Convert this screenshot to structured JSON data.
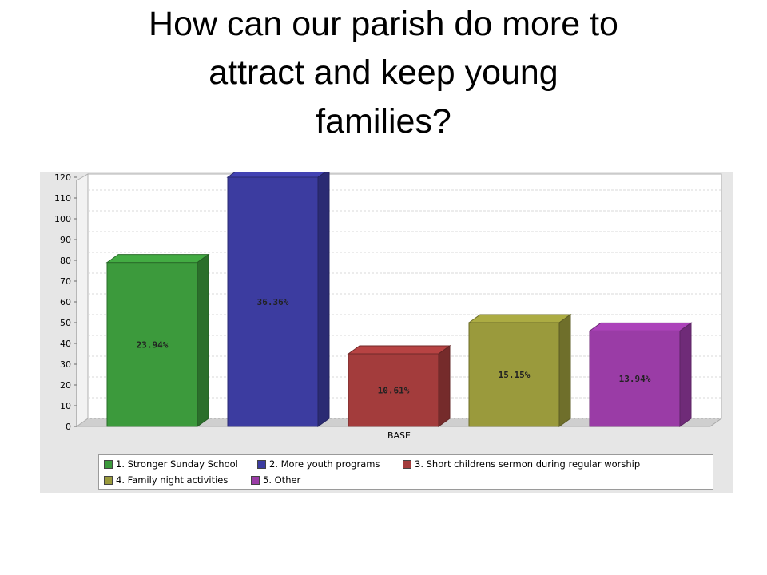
{
  "slide": {
    "title_line1": "How can our parish do more to",
    "title_line2": "attract and keep young",
    "title_line3": "families?"
  },
  "chart_data": {
    "type": "bar",
    "categories": [
      "BASE"
    ],
    "xlabel": "BASE",
    "ylabel": "",
    "ylim": [
      0,
      120
    ],
    "yticks": [
      0,
      10,
      20,
      30,
      40,
      50,
      60,
      70,
      80,
      90,
      100,
      110,
      120
    ],
    "grid": true,
    "legend_position": "bottom",
    "series": [
      {
        "name": "1. Stronger Sunday School",
        "value": 79,
        "label": "23.94%",
        "color": "#3c9a3c"
      },
      {
        "name": "2. More youth programs",
        "value": 120,
        "label": "36.36%",
        "color": "#3c3ca0"
      },
      {
        "name": "3. Short childrens sermon during regular worship",
        "value": 35,
        "label": "10.61%",
        "color": "#a33c3c"
      },
      {
        "name": "4. Family night activities",
        "value": 50,
        "label": "15.15%",
        "color": "#9a9a3c"
      },
      {
        "name": "5. Other",
        "value": 46,
        "label": "13.94%",
        "color": "#9a3ca6"
      }
    ]
  }
}
